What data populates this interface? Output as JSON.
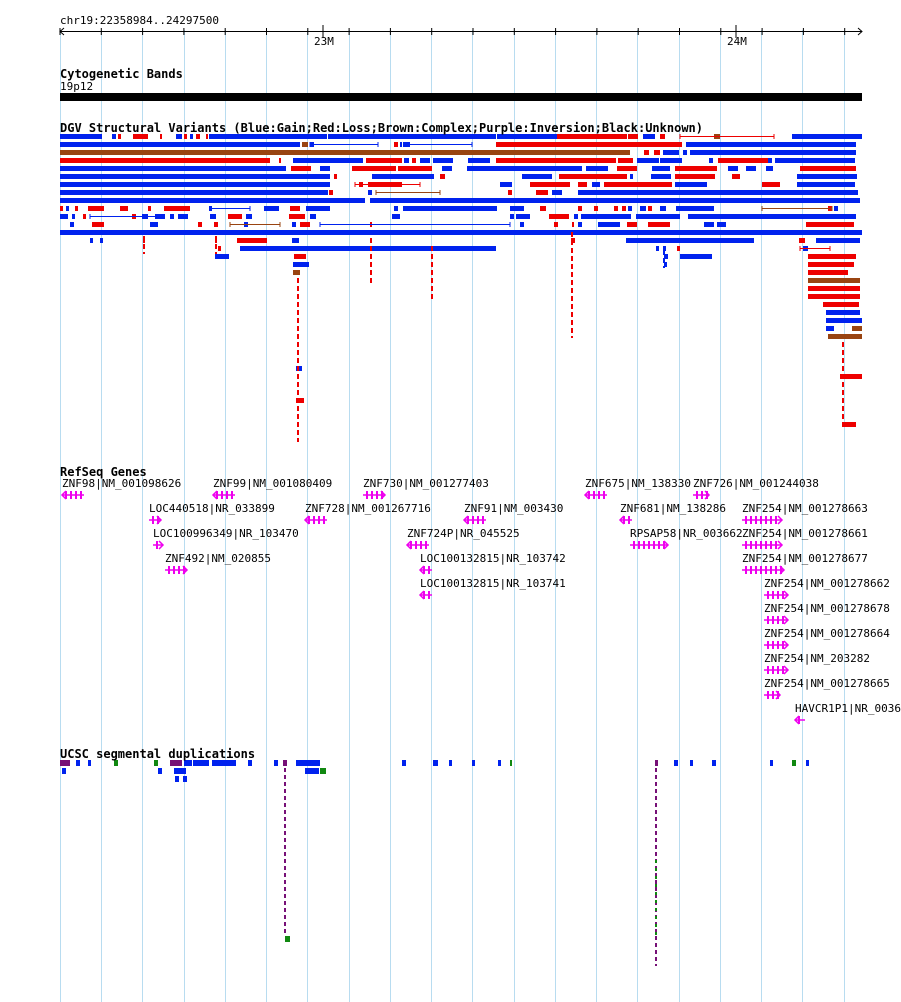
{
  "region": {
    "label": "chr19:22358984..24297500"
  },
  "ruler": {
    "ticks": [
      "23M",
      "24M"
    ]
  },
  "tracks": {
    "cytoband": {
      "title": "Cytogenetic Bands",
      "band": "19p12"
    },
    "dgv": {
      "title": "DGV Structural Variants (Blue:Gain;Red:Loss;Brown:Complex;Purple:Inversion;Black:Unknown)"
    },
    "refseq": {
      "title": "RefSeq Genes",
      "genes": [
        {
          "label": "ZNF98|NM_001098626",
          "strand": "-"
        },
        {
          "label": "ZNF99|NM_001080409",
          "strand": "-"
        },
        {
          "label": "ZNF730|NM_001277403",
          "strand": "+"
        },
        {
          "label": "ZNF675|NM_138330",
          "strand": "-"
        },
        {
          "label": "ZNF726|NM_001244038",
          "strand": "+"
        },
        {
          "label": "LOC440518|NR_033899",
          "strand": "+"
        },
        {
          "label": "ZNF728|NM_001267716",
          "strand": "-"
        },
        {
          "label": "ZNF91|NM_003430",
          "strand": "-"
        },
        {
          "label": "ZNF681|NM_138286",
          "strand": "-"
        },
        {
          "label": "ZNF254|NM_001278663",
          "strand": "+"
        },
        {
          "label": "LOC100996349|NR_103470",
          "strand": "+"
        },
        {
          "label": "ZNF724P|NR_045525",
          "strand": "-"
        },
        {
          "label": "RPSAP58|NR_003662",
          "strand": "+"
        },
        {
          "label": "ZNF254|NM_001278661",
          "strand": "+"
        },
        {
          "label": "ZNF492|NM_020855",
          "strand": "+"
        },
        {
          "label": "LOC100132815|NR_103742",
          "strand": "-"
        },
        {
          "label": "ZNF254|NM_001278677",
          "strand": "+"
        },
        {
          "label": "LOC100132815|NR_103741",
          "strand": "-"
        },
        {
          "label": "ZNF254|NM_001278662",
          "strand": "+"
        },
        {
          "label": "ZNF254|NM_001278678",
          "strand": "+"
        },
        {
          "label": "ZNF254|NM_001278664",
          "strand": "+"
        },
        {
          "label": "ZNF254|NM_203282",
          "strand": "+"
        },
        {
          "label": "ZNF254|NM_001278665",
          "strand": "+"
        },
        {
          "label": "HAVCR1P1|NR_0036",
          "strand": "-"
        }
      ]
    },
    "segdups": {
      "title": "UCSC segmental duplications"
    }
  },
  "colors": {
    "gain": "#0022ee",
    "loss": "#ee0000",
    "complex": "#994411",
    "inversion": "#880088",
    "gene": "#ee00ee",
    "segdup_blue": "#0022ee",
    "segdup_green": "#118811",
    "segdup_purple": "#771177",
    "grid": "#b8dcf0",
    "cytoband": "#000000"
  }
}
